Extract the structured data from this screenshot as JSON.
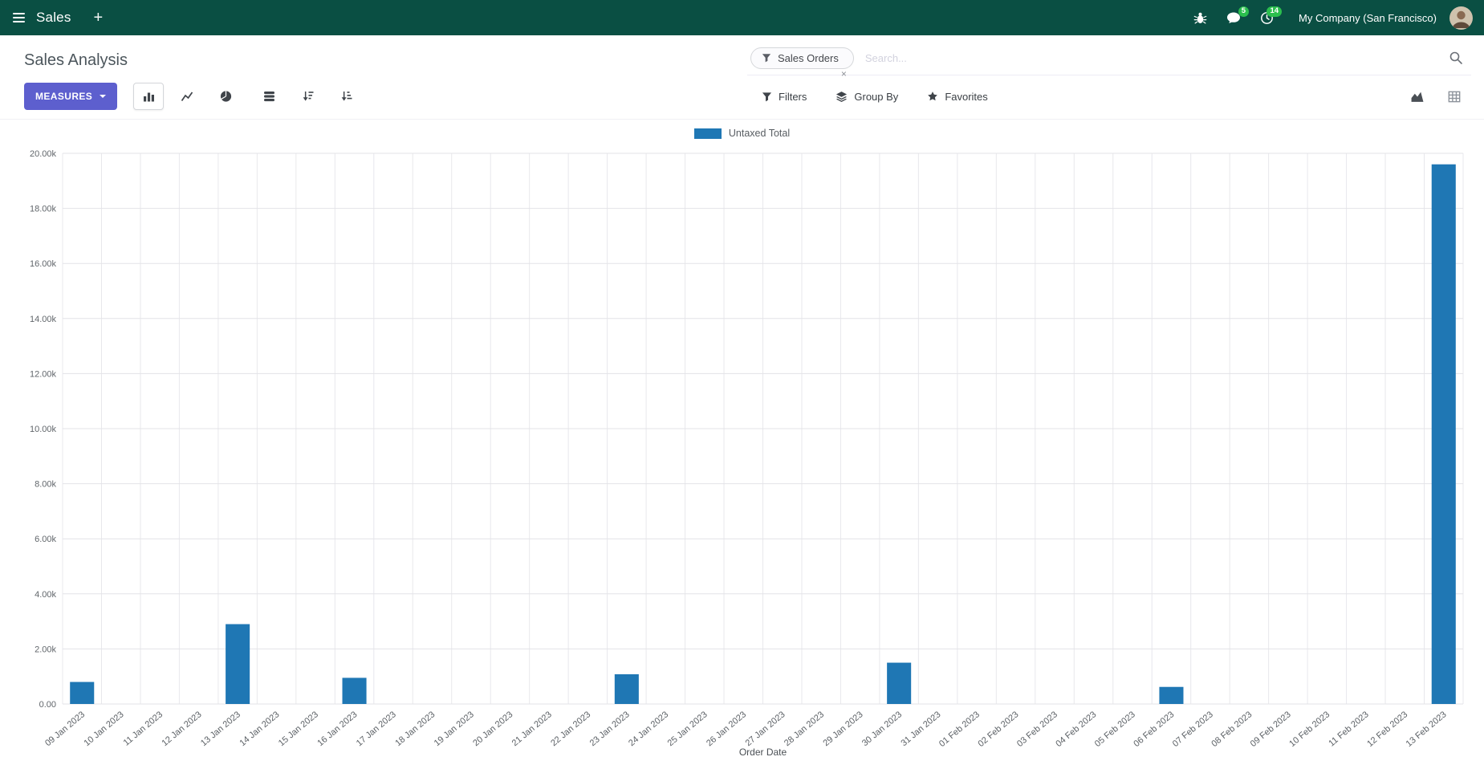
{
  "colors": {
    "navbar_bg": "#0a4f43",
    "primary_button": "#5d5fce",
    "badge_green": "#2bbf4e",
    "bar_series": "#1f77b4"
  },
  "navbar": {
    "app_name": "Sales",
    "plus_label": "+",
    "company_name": "My Company (San Francisco)",
    "message_badge": "5",
    "activity_badge": "14"
  },
  "control_panel": {
    "title": "Sales Analysis",
    "measures_button": "MEASURES",
    "filters_label": "Filters",
    "group_by_label": "Group By",
    "favorites_label": "Favorites",
    "search": {
      "facet_label": "Sales Orders",
      "facet_remove": "×",
      "placeholder": "Search..."
    }
  },
  "icons": {
    "navbar": [
      "hamburger-icon",
      "bug-icon",
      "chat-icon",
      "clock-icon",
      "avatar"
    ],
    "toolbar": [
      "bar-chart-icon",
      "line-chart-icon",
      "pie-chart-icon",
      "stacked-icon",
      "sort-desc-icon",
      "sort-asc-icon"
    ],
    "search_row": [
      "funnel-icon",
      "layers-icon",
      "star-icon",
      "magnifier-icon"
    ],
    "view_switcher": [
      "area-chart-icon",
      "pivot-table-icon"
    ]
  },
  "chart_data": {
    "type": "bar",
    "title": "",
    "xlabel": "Order Date",
    "ylabel": "",
    "ylim": [
      0,
      20000
    ],
    "grid": true,
    "legend_position": "top",
    "yticks": [
      0,
      2000,
      4000,
      6000,
      8000,
      10000,
      12000,
      14000,
      16000,
      18000,
      20000
    ],
    "ytick_labels": [
      "0.00",
      "2.00k",
      "4.00k",
      "6.00k",
      "8.00k",
      "10.00k",
      "12.00k",
      "14.00k",
      "16.00k",
      "18.00k",
      "20.00k"
    ],
    "categories": [
      "09 Jan 2023",
      "10 Jan 2023",
      "11 Jan 2023",
      "12 Jan 2023",
      "13 Jan 2023",
      "14 Jan 2023",
      "15 Jan 2023",
      "16 Jan 2023",
      "17 Jan 2023",
      "18 Jan 2023",
      "19 Jan 2023",
      "20 Jan 2023",
      "21 Jan 2023",
      "22 Jan 2023",
      "23 Jan 2023",
      "24 Jan 2023",
      "25 Jan 2023",
      "26 Jan 2023",
      "27 Jan 2023",
      "28 Jan 2023",
      "29 Jan 2023",
      "30 Jan 2023",
      "31 Jan 2023",
      "01 Feb 2023",
      "02 Feb 2023",
      "03 Feb 2023",
      "04 Feb 2023",
      "05 Feb 2023",
      "06 Feb 2023",
      "07 Feb 2023",
      "08 Feb 2023",
      "09 Feb 2023",
      "10 Feb 2023",
      "11 Feb 2023",
      "12 Feb 2023",
      "13 Feb 2023"
    ],
    "series": [
      {
        "name": "Untaxed Total",
        "color": "#1f77b4",
        "values": [
          800,
          0,
          0,
          0,
          2900,
          0,
          0,
          950,
          0,
          0,
          0,
          0,
          0,
          0,
          1080,
          0,
          0,
          0,
          0,
          0,
          0,
          1500,
          0,
          0,
          0,
          0,
          0,
          0,
          620,
          0,
          0,
          0,
          0,
          0,
          0,
          19600
        ]
      }
    ]
  }
}
